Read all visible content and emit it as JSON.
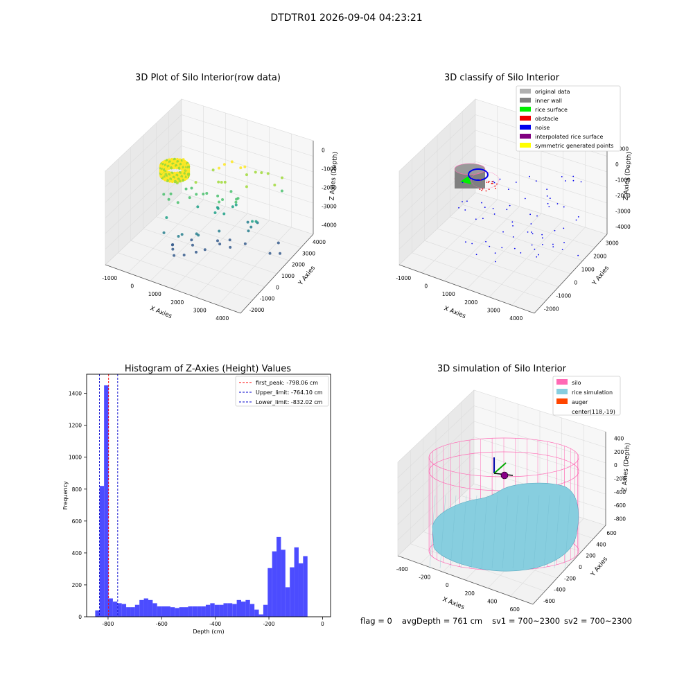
{
  "figure": {
    "suptitle": "DTDTR01 2026-09-04 04:23:21",
    "footer": {
      "flag": "flag = 0",
      "avg_depth": "avgDepth = 761 cm",
      "sv1": "sv1 = 700~2300",
      "sv2": "sv2 = 700~2300"
    }
  },
  "chart_data": [
    {
      "type": "scatter",
      "title": "3D Plot of Silo Interior(row data)",
      "xlabel": "X Axies",
      "ylabel": "Y Axies",
      "zlabel": "Z Axies (Depth)",
      "x_ticks": [
        -1000,
        0,
        1000,
        2000,
        3000,
        4000
      ],
      "y_ticks": [
        -2000,
        -1000,
        0,
        1000,
        2000,
        3000,
        4000
      ],
      "z_ticks": [
        0,
        -1000,
        -2000,
        -3000,
        -4000
      ],
      "colormap": [
        "#fde725",
        "#a0da39",
        "#4ac16d",
        "#1fa187",
        "#277f8e",
        "#365c8d",
        "#46327e"
      ],
      "description_points": "dense ring of points near depth -800 plus scattered outliers"
    },
    {
      "type": "scatter",
      "title": "3D classify of Silo Interior",
      "xlabel": "X Axies",
      "ylabel": "Y Axies",
      "zlabel": "Z Axies (Depth)",
      "x_ticks": [
        -1000,
        0,
        1000,
        2000,
        3000,
        4000
      ],
      "y_ticks": [
        -2000,
        -1000,
        0,
        1000,
        2000,
        3000
      ],
      "z_ticks": [
        1000,
        0,
        -1000,
        -2000,
        -3000,
        -4000
      ],
      "legend": [
        {
          "label": "original data",
          "color": "#b0b0b0"
        },
        {
          "label": "inner wall",
          "color": "#808080"
        },
        {
          "label": "rice surface",
          "color": "#00ee00"
        },
        {
          "label": "obstacle",
          "color": "#ee0000"
        },
        {
          "label": "noise",
          "color": "#0000ee"
        },
        {
          "label": "interpolated rice surface",
          "color": "#800080"
        },
        {
          "label": "symmetric generated points",
          "color": "#ffff00"
        }
      ]
    },
    {
      "type": "bar",
      "title": "Histogram of Z-Axies (Height) Values",
      "xlabel": "Depth (cm)",
      "ylabel": "Frequency",
      "xlim": [
        -880,
        30
      ],
      "ylim": [
        0,
        1520
      ],
      "x_ticks": [
        -800,
        -600,
        -400,
        -200,
        0
      ],
      "y_ticks": [
        0,
        200,
        400,
        600,
        800,
        1000,
        1200,
        1400
      ],
      "bin_edges_start": -848,
      "bin_width": 16.5,
      "values": [
        40,
        820,
        1450,
        115,
        95,
        85,
        80,
        60,
        60,
        75,
        105,
        115,
        105,
        85,
        65,
        65,
        65,
        60,
        55,
        60,
        60,
        65,
        65,
        65,
        65,
        75,
        85,
        75,
        75,
        85,
        85,
        80,
        105,
        95,
        105,
        80,
        45,
        15,
        75,
        305,
        410,
        500,
        420,
        185,
        310,
        435,
        335,
        380
      ],
      "bar_color": "#4c4cff",
      "vlines": [
        {
          "label": "first_peak: -798.06 cm",
          "x": -798.06,
          "color": "#ff0000"
        },
        {
          "label": "Upper_limit: -764.10 cm",
          "x": -764.1,
          "color": "#0000cc"
        },
        {
          "label": "Lower_limit: -832.02 cm",
          "x": -832.02,
          "color": "#0000cc"
        }
      ]
    },
    {
      "type": "area",
      "title": "3D simulation of Silo Interior",
      "xlabel": "X Axies",
      "ylabel": "Y Axies",
      "zlabel": "Z Axies (Depth)",
      "x_ticks": [
        -400,
        -200,
        0,
        200,
        400,
        600
      ],
      "y_ticks": [
        -600,
        -400,
        -200,
        0,
        200,
        400,
        600
      ],
      "z_ticks": [
        400,
        200,
        0,
        -200,
        -400,
        -600,
        -800
      ],
      "legend": [
        {
          "label": "silo",
          "color": "#ff69b4"
        },
        {
          "label": "rice simulation",
          "color": "#87cedf"
        },
        {
          "label": "auger",
          "color": "#ff4500"
        },
        {
          "label": "center(118,-19)",
          "color": ""
        }
      ]
    }
  ]
}
